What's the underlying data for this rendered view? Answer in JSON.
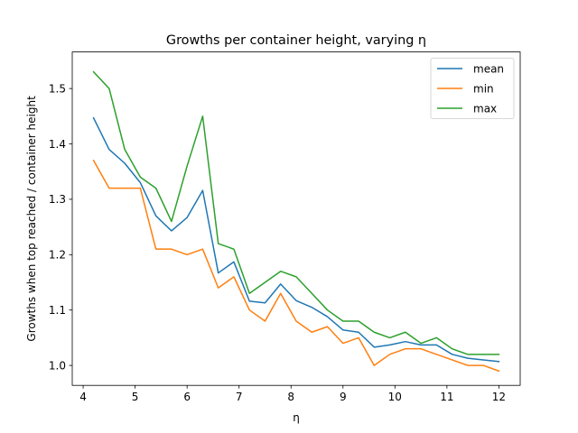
{
  "chart_data": {
    "type": "line",
    "title": "Growths per container height, varying η",
    "xlabel": "η",
    "ylabel": "Growths when top reached / container height",
    "xlim": [
      3.79,
      12.41
    ],
    "ylim": [
      0.964,
      1.566
    ],
    "xticks": [
      4,
      5,
      6,
      7,
      8,
      9,
      10,
      11,
      12
    ],
    "yticks": [
      1.0,
      1.1,
      1.2,
      1.3,
      1.4,
      1.5
    ],
    "xtick_labels": [
      "4",
      "5",
      "6",
      "7",
      "8",
      "9",
      "10",
      "11",
      "12"
    ],
    "ytick_labels": [
      "1.0",
      "1.1",
      "1.2",
      "1.3",
      "1.4",
      "1.5"
    ],
    "grid": false,
    "legend_position": "upper right",
    "x": [
      4.2,
      4.5,
      4.8,
      5.1,
      5.4,
      5.7,
      6.0,
      6.3,
      6.6,
      6.9,
      7.2,
      7.5,
      7.8,
      8.1,
      8.4,
      8.7,
      9.0,
      9.3,
      9.6,
      9.9,
      10.2,
      10.5,
      10.8,
      11.1,
      11.4,
      11.7,
      12.0
    ],
    "series": [
      {
        "name": "mean",
        "color": "#1f77b4",
        "values": [
          1.447,
          1.39,
          1.365,
          1.33,
          1.27,
          1.243,
          1.267,
          1.316,
          1.167,
          1.187,
          1.116,
          1.113,
          1.147,
          1.117,
          1.105,
          1.088,
          1.064,
          1.06,
          1.033,
          1.037,
          1.043,
          1.037,
          1.037,
          1.02,
          1.013,
          1.01,
          1.007
        ]
      },
      {
        "name": "min",
        "color": "#ff7f0e",
        "values": [
          1.37,
          1.32,
          1.32,
          1.32,
          1.21,
          1.21,
          1.2,
          1.21,
          1.14,
          1.16,
          1.1,
          1.08,
          1.13,
          1.08,
          1.06,
          1.07,
          1.04,
          1.05,
          1.0,
          1.02,
          1.03,
          1.03,
          1.02,
          1.01,
          1.0,
          1.0,
          0.99
        ]
      },
      {
        "name": "max",
        "color": "#2ca02c",
        "values": [
          1.53,
          1.5,
          1.39,
          1.34,
          1.32,
          1.26,
          1.36,
          1.45,
          1.22,
          1.21,
          1.13,
          1.15,
          1.17,
          1.16,
          1.13,
          1.1,
          1.08,
          1.08,
          1.06,
          1.05,
          1.06,
          1.04,
          1.05,
          1.03,
          1.02,
          1.02,
          1.02
        ]
      }
    ]
  }
}
